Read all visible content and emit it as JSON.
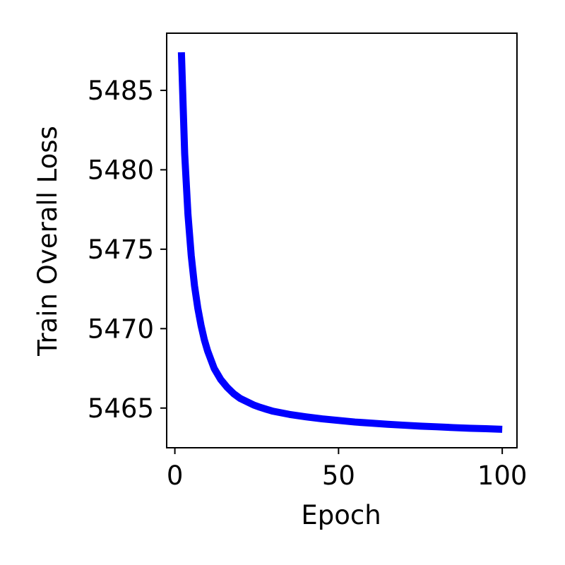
{
  "chart_data": {
    "type": "line",
    "title": "",
    "xlabel": "Epoch",
    "ylabel": "Train Overall Loss",
    "xlim": [
      -2.5,
      104.5
    ],
    "ylim": [
      5462.5,
      5488.6
    ],
    "xticks": [
      0,
      50,
      100
    ],
    "yticks": [
      5465,
      5470,
      5475,
      5480,
      5485
    ],
    "xtick_labels": [
      "0",
      "50",
      "100"
    ],
    "ytick_labels": [
      "5465",
      "5470",
      "5475",
      "5480",
      "5485"
    ],
    "grid": false,
    "legend": "none",
    "series": [
      {
        "color": "#0000ff",
        "x": [
          2,
          3,
          4,
          5,
          6,
          7,
          8,
          9,
          10,
          12,
          14,
          16,
          18,
          20,
          22,
          24,
          26,
          28,
          30,
          35,
          40,
          45,
          50,
          55,
          60,
          65,
          70,
          75,
          80,
          85,
          90,
          95,
          100
        ],
        "y": [
          5487.4,
          5481.0,
          5477.2,
          5474.6,
          5472.7,
          5471.3,
          5470.2,
          5469.3,
          5468.6,
          5467.5,
          5466.8,
          5466.3,
          5465.9,
          5465.6,
          5465.4,
          5465.2,
          5465.05,
          5464.92,
          5464.8,
          5464.6,
          5464.45,
          5464.32,
          5464.22,
          5464.12,
          5464.05,
          5463.98,
          5463.92,
          5463.86,
          5463.82,
          5463.77,
          5463.73,
          5463.7,
          5463.66
        ]
      }
    ]
  }
}
